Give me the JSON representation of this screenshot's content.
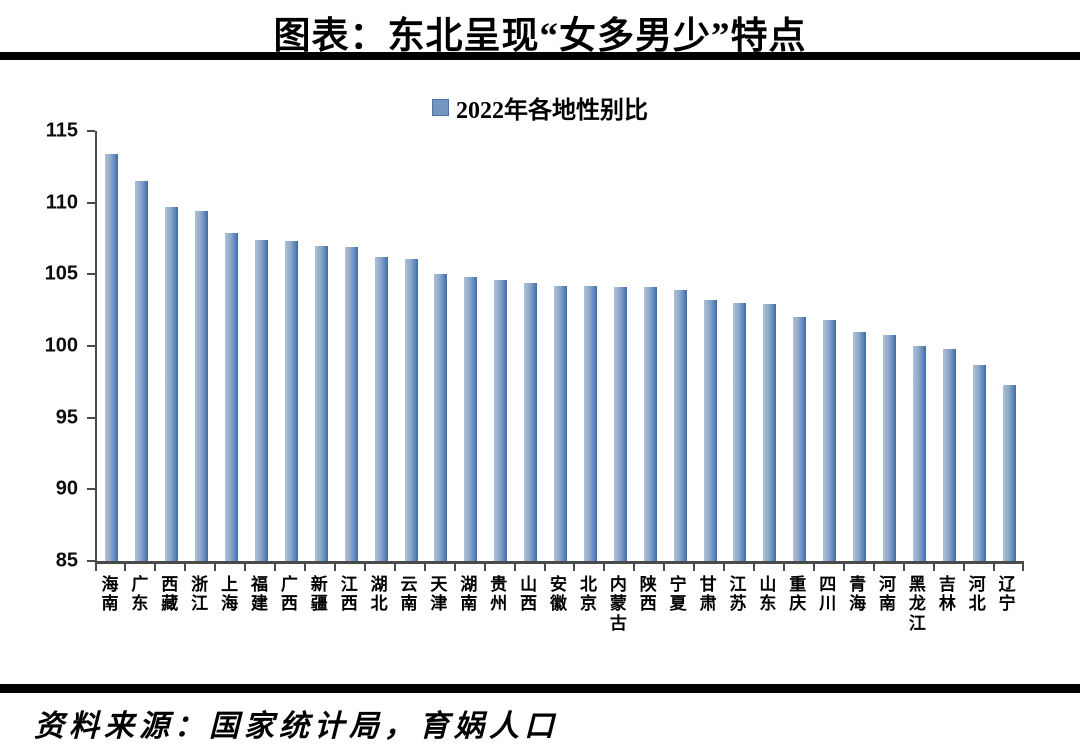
{
  "page": {
    "background": "#ffffff",
    "divider_color": "#000000"
  },
  "chart_data": {
    "type": "bar",
    "title": "图表：东北呈现“女多男少”特点",
    "series_name": "2022年各地性别比",
    "source": "资料来源：国家统计局，育娲人口",
    "categories": [
      "海南",
      "广东",
      "西藏",
      "浙江",
      "上海",
      "福建",
      "广西",
      "新疆",
      "江西",
      "湖北",
      "云南",
      "天津",
      "湖南",
      "贵州",
      "山西",
      "安徽",
      "北京",
      "内蒙古",
      "陕西",
      "宁夏",
      "甘肃",
      "江苏",
      "山东",
      "重庆",
      "四川",
      "青海",
      "河南",
      "黑龙江",
      "吉林",
      "河北",
      "辽宁"
    ],
    "values": [
      113.4,
      111.5,
      109.7,
      109.4,
      107.9,
      107.4,
      107.3,
      107.0,
      106.9,
      106.2,
      106.1,
      105.0,
      104.8,
      104.6,
      104.4,
      104.2,
      104.2,
      104.1,
      104.1,
      103.9,
      103.2,
      103.0,
      102.9,
      102.0,
      101.8,
      101.0,
      100.8,
      100.0,
      99.8,
      98.7,
      97.3
    ],
    "xlabel": "",
    "ylabel": "",
    "ylim": [
      85,
      115
    ],
    "yticks": [
      115,
      110,
      105,
      100,
      95,
      90,
      85
    ],
    "grid": false,
    "legend_position": "top-center",
    "bar_color_light": "#aebfd8",
    "bar_color_main": "#7396c0",
    "bar_color_dark": "#3f6ba3",
    "axis_color": "#4a4a4a"
  }
}
